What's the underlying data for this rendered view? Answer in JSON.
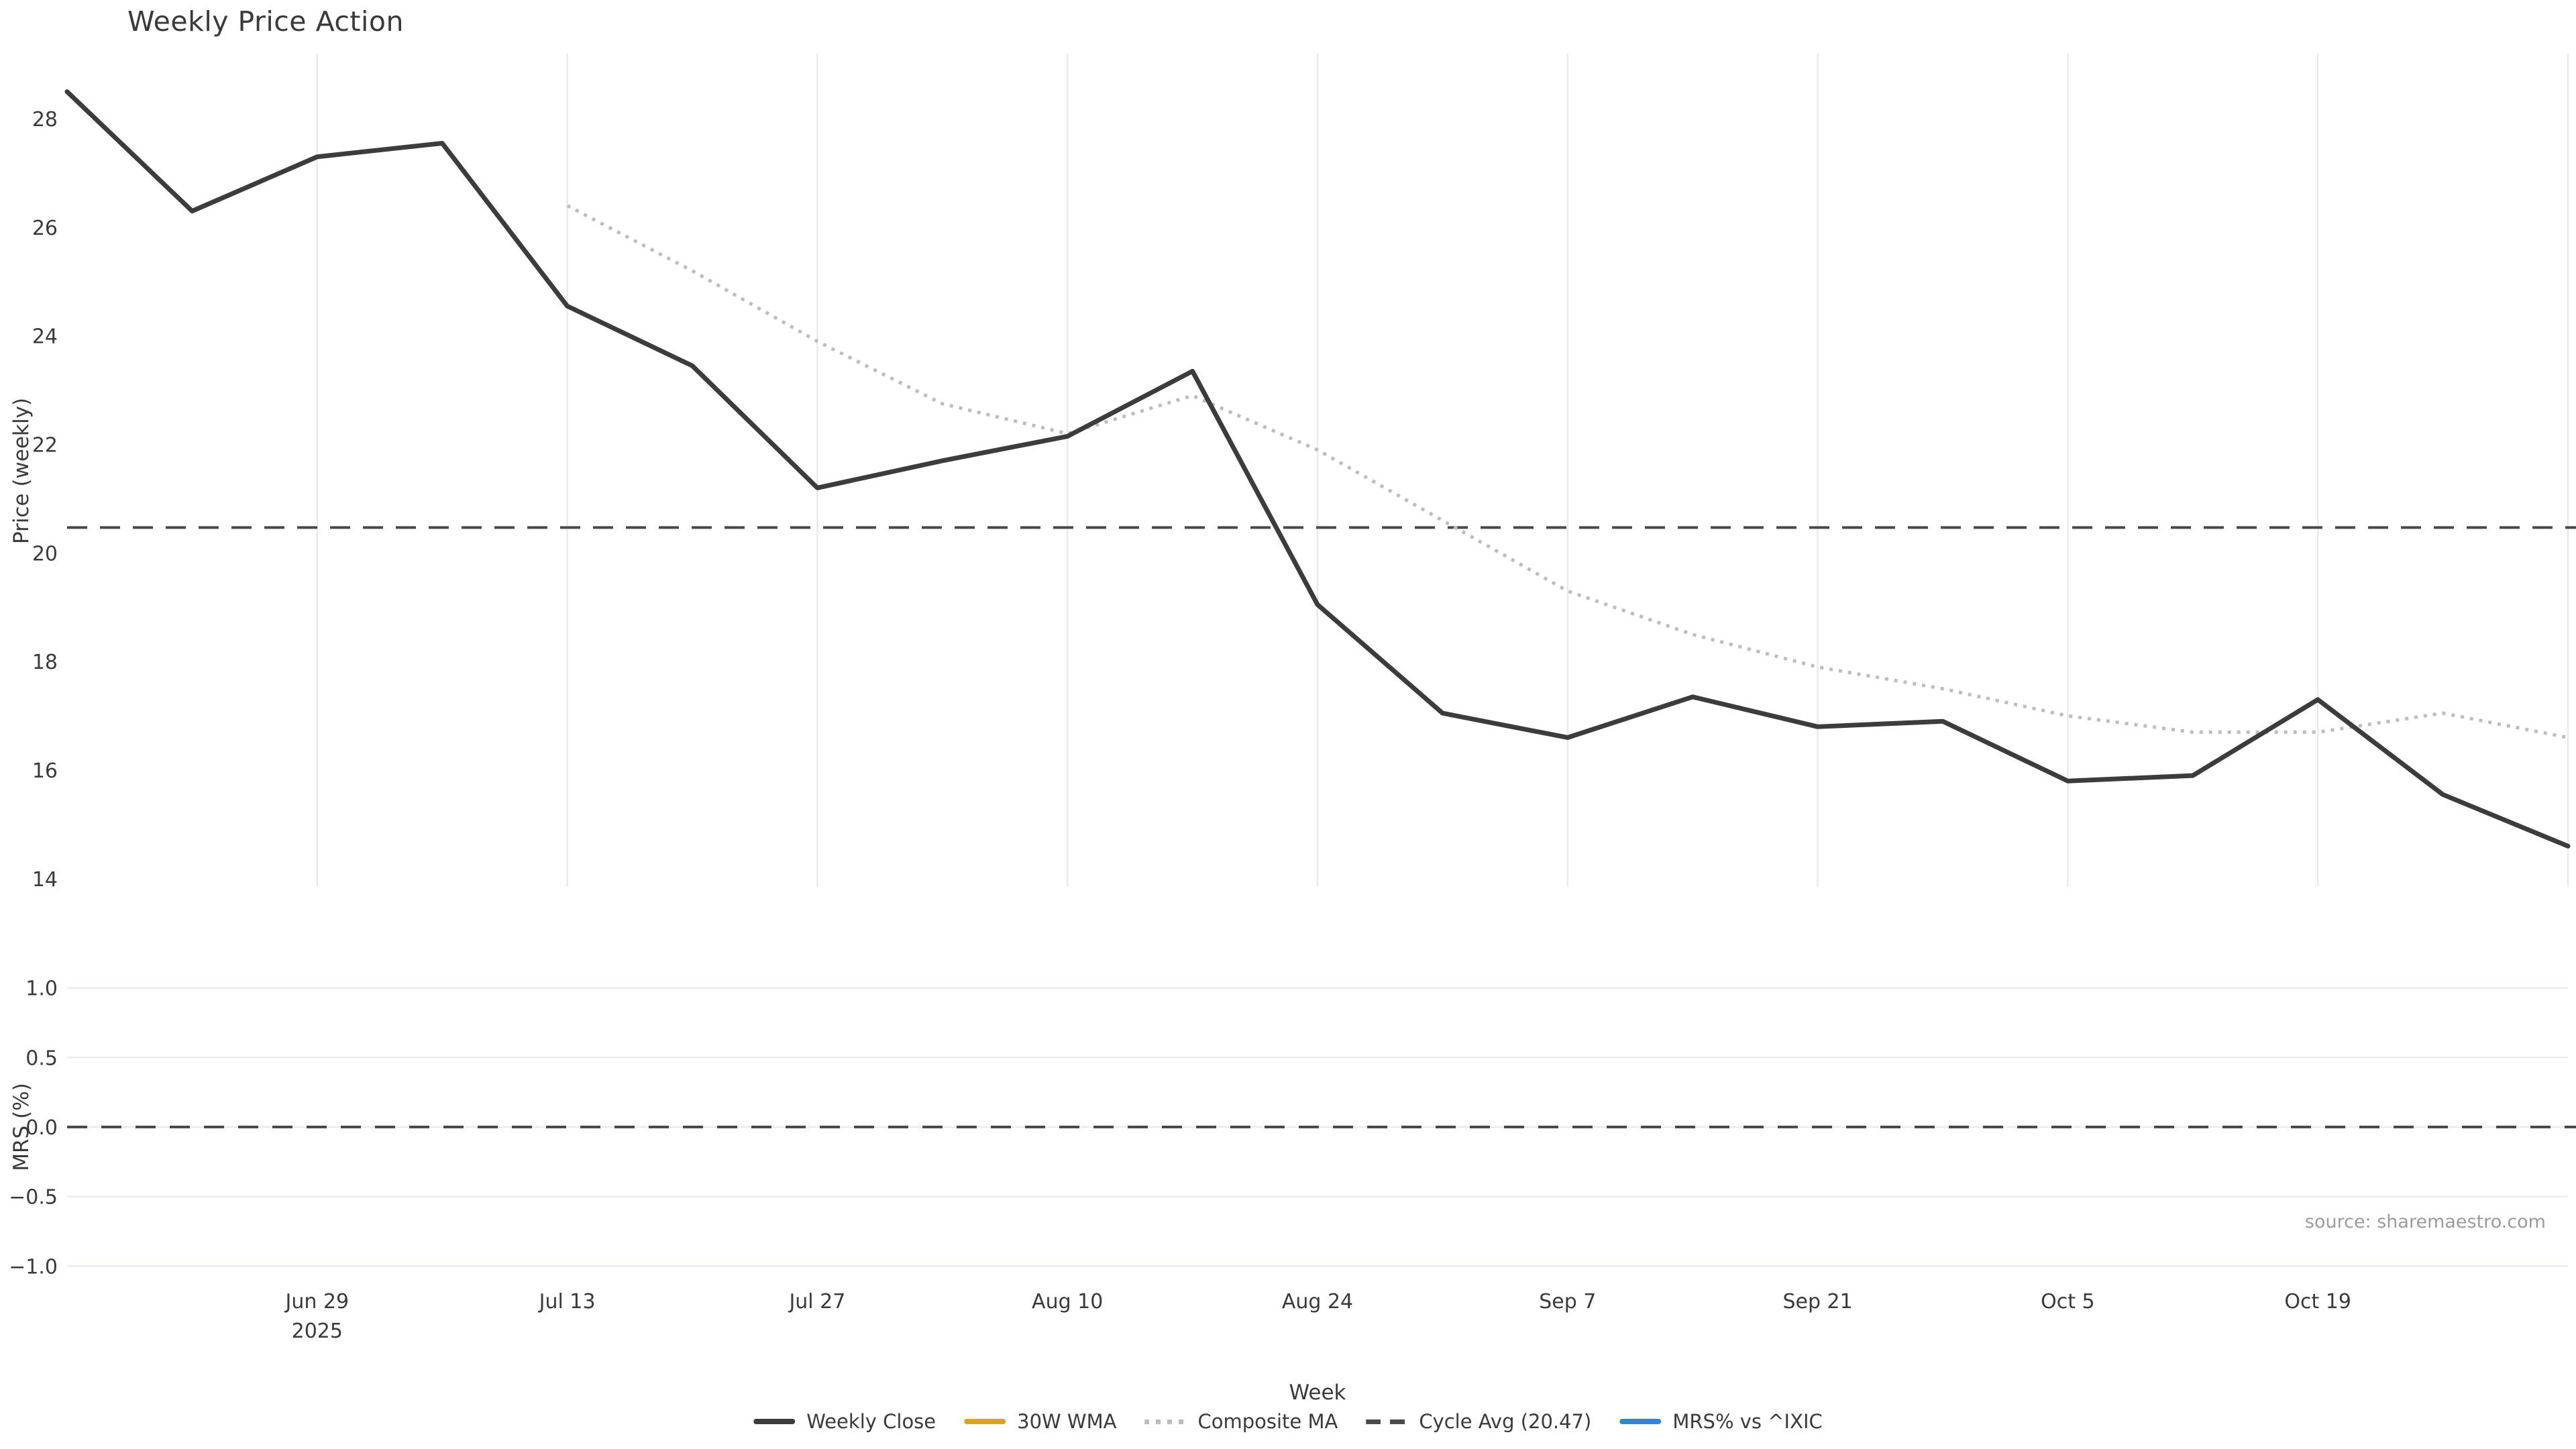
{
  "title": "Weekly Price Action",
  "source_note": "source: sharemaestro.com",
  "axes": {
    "xlabel": "Week",
    "top": {
      "ylabel": "Price (weekly)",
      "yticks": [
        "28",
        "26",
        "24",
        "22",
        "20",
        "18",
        "16",
        "14"
      ],
      "ylim": [
        13.85,
        29.2
      ]
    },
    "bottom": {
      "ylabel": "MRS (%)",
      "yticks": [
        "1.0",
        "0.5",
        "0.0",
        "−0.5",
        "−1.0"
      ],
      "ylim": [
        -1.1,
        1.1
      ]
    },
    "xticks": [
      {
        "label": "Jun 29",
        "sub": "2025",
        "week": 2
      },
      {
        "label": "Jul 13",
        "week": 4
      },
      {
        "label": "Jul 27",
        "week": 6
      },
      {
        "label": "Aug 10",
        "week": 8
      },
      {
        "label": "Aug 24",
        "week": 10
      },
      {
        "label": "Sep 7",
        "week": 12
      },
      {
        "label": "Sep 21",
        "week": 14
      },
      {
        "label": "Oct 5",
        "week": 16
      },
      {
        "label": "Oct 19",
        "week": 18
      }
    ],
    "extra_gridline_week": 20
  },
  "legend": {
    "items": [
      {
        "label": "Weekly Close",
        "color": "#3c3c3c",
        "style": "solid"
      },
      {
        "label": "30W WMA",
        "color": "#d9a41f",
        "style": "solid"
      },
      {
        "label": "Composite MA",
        "color": "#bdbdbd",
        "style": "dotted"
      },
      {
        "label": "Cycle Avg (20.47)",
        "color": "#4a4a4a",
        "style": "dashed"
      },
      {
        "label": "MRS% vs ^IXIC",
        "color": "#2e86d8",
        "style": "solid"
      }
    ]
  },
  "colors": {
    "weekly_close": "#3c3c3c",
    "wma_30w": "#d9a41f",
    "composite_ma": "#bdbdbd",
    "cycle_avg": "#4a4a4a",
    "mrs_line": "#2e86d8",
    "gridline": "#e9ebee",
    "text": "#3a3a3a",
    "source_text": "#9b9b9b"
  },
  "chart_data": [
    {
      "type": "line",
      "title": "Weekly Price Action",
      "xlabel": "Week",
      "ylabel": "Price (weekly)",
      "x": [
        "Jun 15",
        "Jun 22",
        "Jun 29",
        "Jul 6",
        "Jul 13",
        "Jul 20",
        "Jul 27",
        "Aug 3",
        "Aug 10",
        "Aug 17",
        "Aug 24",
        "Aug 31",
        "Sep 7",
        "Sep 14",
        "Sep 21",
        "Sep 28",
        "Oct 5",
        "Oct 12",
        "Oct 19",
        "Oct 26",
        "Nov 2"
      ],
      "ylim": [
        13.85,
        29.2
      ],
      "grid": "x-only",
      "legend_position": "bottom-center",
      "series": [
        {
          "name": "Weekly Close",
          "style": "solid",
          "values": [
            28.5,
            26.3,
            27.3,
            27.55,
            24.55,
            23.45,
            21.2,
            21.7,
            22.15,
            23.35,
            19.05,
            17.05,
            16.6,
            17.35,
            16.8,
            16.9,
            15.8,
            15.9,
            17.3,
            15.55,
            14.6
          ]
        },
        {
          "name": "30W WMA",
          "style": "solid",
          "values": [
            null,
            null,
            null,
            null,
            null,
            null,
            null,
            null,
            null,
            null,
            null,
            null,
            null,
            null,
            null,
            null,
            null,
            null,
            null,
            null,
            null
          ],
          "note": "in legend only, no visible data in plot"
        },
        {
          "name": "Composite MA",
          "style": "dotted",
          "values": [
            null,
            null,
            null,
            null,
            26.4,
            25.2,
            23.9,
            22.75,
            22.2,
            22.9,
            21.9,
            20.6,
            19.3,
            18.5,
            17.9,
            17.5,
            17.0,
            16.7,
            16.7,
            17.05,
            16.6
          ]
        },
        {
          "name": "Cycle Avg",
          "style": "dashed-hline",
          "hline_value": 20.47
        }
      ]
    },
    {
      "type": "line",
      "ylabel": "MRS (%)",
      "ylim": [
        -1.1,
        1.1
      ],
      "grid": "y-only",
      "series": [
        {
          "name": "MRS% vs ^IXIC",
          "style": "solid",
          "values": [],
          "note": "in legend only, no visible data in plot"
        },
        {
          "name": "zero reference",
          "style": "dashed-hline",
          "hline_value": 0.0
        }
      ]
    }
  ]
}
